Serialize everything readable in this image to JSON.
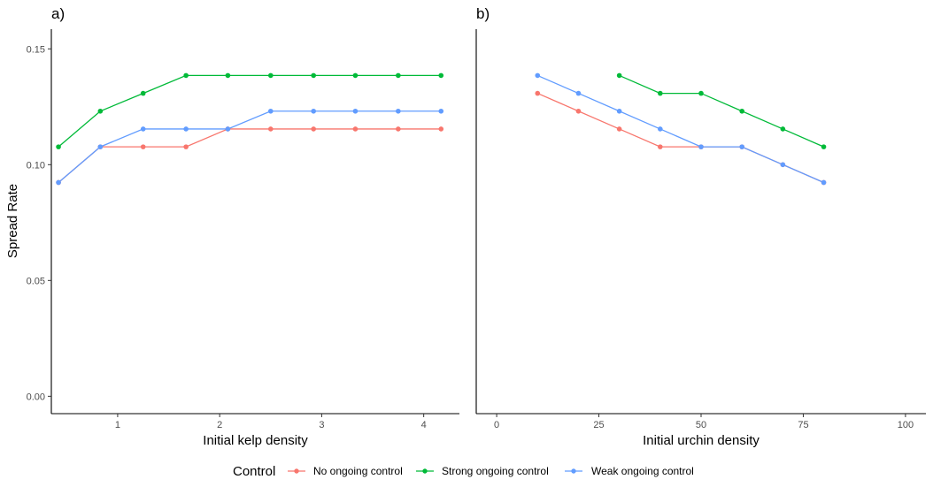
{
  "chart_data": [
    {
      "type": "line",
      "panel": "a)",
      "xlabel": "Initial kelp density",
      "ylabel": "Spread Rate",
      "xlim": [
        0.35,
        4.35
      ],
      "ylim": [
        -0.0075,
        0.1585
      ],
      "xticks": [
        1,
        2,
        3,
        4
      ],
      "yticks": [
        0.0,
        0.05,
        0.1,
        0.15
      ],
      "ytick_labels": [
        "0.00",
        "0.05",
        "0.10",
        "0.15"
      ],
      "grid": false,
      "series": [
        {
          "name": "No ongoing control",
          "color": "#F8766D",
          "x": [
            0.42,
            0.83,
            1.25,
            1.67,
            2.08,
            2.5,
            2.92,
            3.33,
            3.75,
            4.17
          ],
          "y": [
            0.0923,
            0.1077,
            0.1077,
            0.1077,
            0.1154,
            0.1154,
            0.1154,
            0.1154,
            0.1154,
            0.1154
          ]
        },
        {
          "name": "Strong ongoing control",
          "color": "#00BA38",
          "x": [
            0.42,
            0.83,
            1.25,
            1.67,
            2.08,
            2.5,
            2.92,
            3.33,
            3.75,
            4.17
          ],
          "y": [
            0.1077,
            0.1231,
            0.1308,
            0.1385,
            0.1385,
            0.1385,
            0.1385,
            0.1385,
            0.1385,
            0.1385
          ]
        },
        {
          "name": "Weak ongoing control",
          "color": "#619CFF",
          "x": [
            0.42,
            0.83,
            1.25,
            1.67,
            2.08,
            2.5,
            2.92,
            3.33,
            3.75,
            4.17
          ],
          "y": [
            0.0923,
            0.1077,
            0.1154,
            0.1154,
            0.1154,
            0.1231,
            0.1231,
            0.1231,
            0.1231,
            0.1231
          ]
        }
      ]
    },
    {
      "type": "line",
      "panel": "b)",
      "xlabel": "Initial urchin density",
      "ylabel": "",
      "xlim": [
        -5,
        105
      ],
      "ylim": [
        -0.0075,
        0.1585
      ],
      "xticks": [
        0,
        25,
        50,
        75,
        100
      ],
      "yticks": [],
      "grid": false,
      "series": [
        {
          "name": "No ongoing control",
          "color": "#F8766D",
          "x": [
            10,
            20,
            30,
            40,
            50,
            60,
            70,
            80
          ],
          "y": [
            0.1308,
            0.1231,
            0.1154,
            0.1077,
            0.1077,
            0.1077,
            0.1,
            0.0923
          ]
        },
        {
          "name": "Strong ongoing control",
          "color": "#00BA38",
          "x": [
            30,
            40,
            50,
            60,
            70,
            80
          ],
          "y": [
            0.1385,
            0.1308,
            0.1308,
            0.1231,
            0.1154,
            0.1077
          ]
        },
        {
          "name": "Weak ongoing control",
          "color": "#619CFF",
          "x": [
            10,
            20,
            30,
            40,
            50,
            60,
            70,
            80
          ],
          "y": [
            0.1385,
            0.1308,
            0.1231,
            0.1154,
            0.1077,
            0.1077,
            0.1,
            0.0923
          ]
        }
      ]
    }
  ],
  "legend": {
    "title": "Control",
    "position": "bottom",
    "items": [
      {
        "label": "No ongoing control",
        "color": "#F8766D"
      },
      {
        "label": "Strong ongoing control",
        "color": "#00BA38"
      },
      {
        "label": "Weak ongoing control",
        "color": "#619CFF"
      }
    ]
  }
}
